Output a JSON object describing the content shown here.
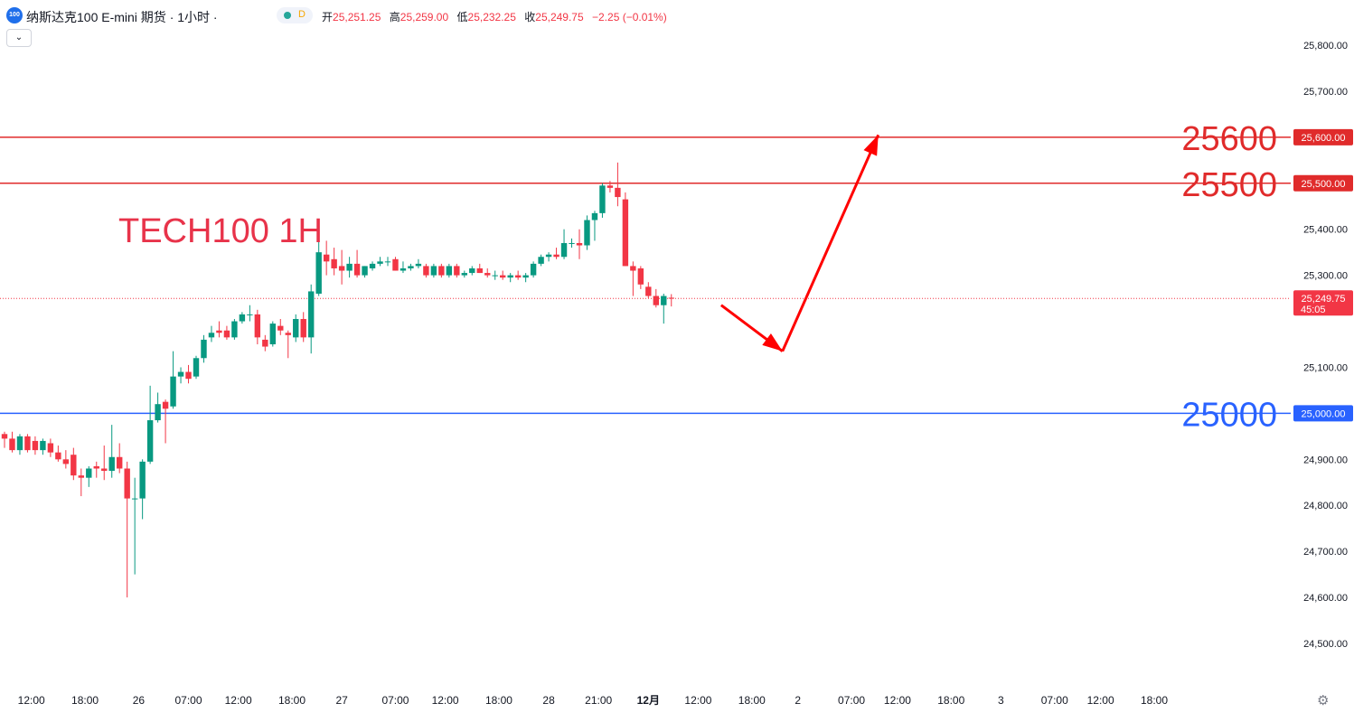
{
  "header": {
    "symbol_badge": "100",
    "title": "纳斯达克100 E-mini 期货 · 1小时 ·",
    "status_letter": "D",
    "open_label": "开",
    "open_value": "25,251.25",
    "high_label": "高",
    "high_value": "25,259.00",
    "low_label": "低",
    "low_value": "25,232.25",
    "close_label": "收",
    "close_value": "25,249.75",
    "change_value": "−2.25 (−0.01%)",
    "collapse_icon": "chevron-down-icon"
  },
  "colors": {
    "up": "#089981",
    "down": "#f23645",
    "resistance": "#e02b2b",
    "support": "#2962ff",
    "arrow": "#ff0000"
  },
  "chart_data": {
    "type": "candlestick",
    "annotation_title": "TECH100 1H",
    "ylim": [
      24420,
      25880
    ],
    "y_ticks": [
      {
        "value": 25800,
        "label": "25,800.00"
      },
      {
        "value": 25700,
        "label": "25,700.00"
      },
      {
        "value": 25400,
        "label": "25,400.00"
      },
      {
        "value": 25300,
        "label": "25,300.00"
      },
      {
        "value": 25100,
        "label": "25,100.00"
      },
      {
        "value": 24900,
        "label": "24,900.00"
      },
      {
        "value": 24800,
        "label": "24,800.00"
      },
      {
        "value": 24700,
        "label": "24,700.00"
      },
      {
        "value": 24600,
        "label": "24,600.00"
      },
      {
        "value": 24500,
        "label": "24,500.00"
      }
    ],
    "x_ticks": [
      {
        "index": 3.5,
        "label": "12:00",
        "bold": false
      },
      {
        "index": 10.5,
        "label": "18:00",
        "bold": false
      },
      {
        "index": 17.5,
        "label": "26",
        "bold": false
      },
      {
        "index": 24,
        "label": "07:00",
        "bold": false
      },
      {
        "index": 30.5,
        "label": "12:00",
        "bold": false
      },
      {
        "index": 37.5,
        "label": "18:00",
        "bold": false
      },
      {
        "index": 44,
        "label": "27",
        "bold": false
      },
      {
        "index": 51,
        "label": "07:00",
        "bold": false
      },
      {
        "index": 57.5,
        "label": "12:00",
        "bold": false
      },
      {
        "index": 64.5,
        "label": "18:00",
        "bold": false
      },
      {
        "index": 71,
        "label": "28",
        "bold": false
      },
      {
        "index": 77.5,
        "label": "21:00",
        "bold": false
      },
      {
        "index": 84,
        "label": "12月",
        "bold": true
      },
      {
        "index": 90.5,
        "label": "12:00",
        "bold": false
      },
      {
        "index": 97.5,
        "label": "18:00",
        "bold": false
      },
      {
        "index": 103.5,
        "label": "2",
        "bold": false
      },
      {
        "index": 110.5,
        "label": "07:00",
        "bold": false
      },
      {
        "index": 116.5,
        "label": "12:00",
        "bold": false
      },
      {
        "index": 123.5,
        "label": "18:00",
        "bold": false
      },
      {
        "index": 130,
        "label": "3",
        "bold": false
      },
      {
        "index": 137,
        "label": "07:00",
        "bold": false
      },
      {
        "index": 143,
        "label": "12:00",
        "bold": false
      },
      {
        "index": 150,
        "label": "18:00",
        "bold": false
      }
    ],
    "levels": [
      {
        "value": 25600,
        "label": "25600",
        "axis_label": "25,600.00",
        "color": "#e02b2b"
      },
      {
        "value": 25500,
        "label": "25500",
        "axis_label": "25,500.00",
        "color": "#e02b2b"
      },
      {
        "value": 25000,
        "label": "25000",
        "axis_label": "25,000.00",
        "color": "#2962ff"
      }
    ],
    "last_price": {
      "value": 25249.75,
      "label": "25,249.75",
      "countdown": "45:05"
    },
    "arrow_path": [
      {
        "index": 93.5,
        "value": 25235
      },
      {
        "index": 101.5,
        "value": 25135
      },
      {
        "index": 114,
        "value": 25605
      }
    ],
    "candles": [
      {
        "o": 24955,
        "h": 24960,
        "l": 24925,
        "c": 24945
      },
      {
        "o": 24945,
        "h": 24960,
        "l": 24915,
        "c": 24920
      },
      {
        "o": 24920,
        "h": 24955,
        "l": 24910,
        "c": 24950
      },
      {
        "o": 24950,
        "h": 24955,
        "l": 24915,
        "c": 24920
      },
      {
        "o": 24940,
        "h": 24950,
        "l": 24910,
        "c": 24920
      },
      {
        "o": 24920,
        "h": 24945,
        "l": 24910,
        "c": 24940
      },
      {
        "o": 24935,
        "h": 24945,
        "l": 24905,
        "c": 24915
      },
      {
        "o": 24915,
        "h": 24930,
        "l": 24895,
        "c": 24900
      },
      {
        "o": 24900,
        "h": 24920,
        "l": 24880,
        "c": 24890
      },
      {
        "o": 24910,
        "h": 24925,
        "l": 24855,
        "c": 24865
      },
      {
        "o": 24865,
        "h": 24880,
        "l": 24820,
        "c": 24860
      },
      {
        "o": 24860,
        "h": 24885,
        "l": 24840,
        "c": 24880
      },
      {
        "o": 24885,
        "h": 24895,
        "l": 24860,
        "c": 24880
      },
      {
        "o": 24880,
        "h": 24930,
        "l": 24855,
        "c": 24875
      },
      {
        "o": 24875,
        "h": 24975,
        "l": 24860,
        "c": 24905
      },
      {
        "o": 24905,
        "h": 24935,
        "l": 24870,
        "c": 24880
      },
      {
        "o": 24880,
        "h": 24895,
        "l": 24600,
        "c": 24815
      },
      {
        "o": 24815,
        "h": 24860,
        "l": 24650,
        "c": 24815
      },
      {
        "o": 24815,
        "h": 24900,
        "l": 24770,
        "c": 24895
      },
      {
        "o": 24895,
        "h": 25060,
        "l": 24890,
        "c": 24985
      },
      {
        "o": 24985,
        "h": 25045,
        "l": 24980,
        "c": 25020
      },
      {
        "o": 25025,
        "h": 25030,
        "l": 24935,
        "c": 25010
      },
      {
        "o": 25015,
        "h": 25135,
        "l": 25010,
        "c": 25080
      },
      {
        "o": 25080,
        "h": 25100,
        "l": 25065,
        "c": 25090
      },
      {
        "o": 25090,
        "h": 25105,
        "l": 25065,
        "c": 25075
      },
      {
        "o": 25080,
        "h": 25125,
        "l": 25075,
        "c": 25120
      },
      {
        "o": 25120,
        "h": 25170,
        "l": 25110,
        "c": 25160
      },
      {
        "o": 25165,
        "h": 25190,
        "l": 25155,
        "c": 25175
      },
      {
        "o": 25180,
        "h": 25200,
        "l": 25165,
        "c": 25175
      },
      {
        "o": 25180,
        "h": 25190,
        "l": 25160,
        "c": 25165
      },
      {
        "o": 25165,
        "h": 25205,
        "l": 25160,
        "c": 25200
      },
      {
        "o": 25200,
        "h": 25220,
        "l": 25195,
        "c": 25215
      },
      {
        "o": 25215,
        "h": 25235,
        "l": 25200,
        "c": 25215
      },
      {
        "o": 25215,
        "h": 25225,
        "l": 25150,
        "c": 25165
      },
      {
        "o": 25160,
        "h": 25170,
        "l": 25135,
        "c": 25145
      },
      {
        "o": 25150,
        "h": 25200,
        "l": 25145,
        "c": 25195
      },
      {
        "o": 25190,
        "h": 25205,
        "l": 25170,
        "c": 25180
      },
      {
        "o": 25175,
        "h": 25180,
        "l": 25120,
        "c": 25170
      },
      {
        "o": 25165,
        "h": 25215,
        "l": 25155,
        "c": 25205
      },
      {
        "o": 25205,
        "h": 25220,
        "l": 25155,
        "c": 25165
      },
      {
        "o": 25165,
        "h": 25280,
        "l": 25130,
        "c": 25265
      },
      {
        "o": 25260,
        "h": 25380,
        "l": 25255,
        "c": 25350
      },
      {
        "o": 25345,
        "h": 25375,
        "l": 25300,
        "c": 25330
      },
      {
        "o": 25335,
        "h": 25360,
        "l": 25300,
        "c": 25315
      },
      {
        "o": 25320,
        "h": 25355,
        "l": 25280,
        "c": 25310
      },
      {
        "o": 25310,
        "h": 25340,
        "l": 25295,
        "c": 25325
      },
      {
        "o": 25325,
        "h": 25355,
        "l": 25295,
        "c": 25300
      },
      {
        "o": 25300,
        "h": 25320,
        "l": 25295,
        "c": 25320
      },
      {
        "o": 25315,
        "h": 25330,
        "l": 25310,
        "c": 25325
      },
      {
        "o": 25325,
        "h": 25340,
        "l": 25320,
        "c": 25330
      },
      {
        "o": 25330,
        "h": 25340,
        "l": 25320,
        "c": 25330
      },
      {
        "o": 25335,
        "h": 25340,
        "l": 25310,
        "c": 25310
      },
      {
        "o": 25310,
        "h": 25330,
        "l": 25305,
        "c": 25315
      },
      {
        "o": 25315,
        "h": 25325,
        "l": 25310,
        "c": 25320
      },
      {
        "o": 25320,
        "h": 25335,
        "l": 25315,
        "c": 25325
      },
      {
        "o": 25320,
        "h": 25325,
        "l": 25295,
        "c": 25300
      },
      {
        "o": 25300,
        "h": 25325,
        "l": 25295,
        "c": 25320
      },
      {
        "o": 25320,
        "h": 25325,
        "l": 25295,
        "c": 25300
      },
      {
        "o": 25300,
        "h": 25325,
        "l": 25295,
        "c": 25320
      },
      {
        "o": 25320,
        "h": 25325,
        "l": 25295,
        "c": 25300
      },
      {
        "o": 25300,
        "h": 25310,
        "l": 25295,
        "c": 25305
      },
      {
        "o": 25305,
        "h": 25320,
        "l": 25300,
        "c": 25315
      },
      {
        "o": 25315,
        "h": 25325,
        "l": 25305,
        "c": 25305
      },
      {
        "o": 25305,
        "h": 25315,
        "l": 25295,
        "c": 25300
      },
      {
        "o": 25300,
        "h": 25310,
        "l": 25290,
        "c": 25300
      },
      {
        "o": 25300,
        "h": 25310,
        "l": 25290,
        "c": 25295
      },
      {
        "o": 25295,
        "h": 25305,
        "l": 25285,
        "c": 25300
      },
      {
        "o": 25300,
        "h": 25310,
        "l": 25290,
        "c": 25295
      },
      {
        "o": 25295,
        "h": 25305,
        "l": 25285,
        "c": 25300
      },
      {
        "o": 25300,
        "h": 25330,
        "l": 25295,
        "c": 25325
      },
      {
        "o": 25325,
        "h": 25345,
        "l": 25320,
        "c": 25340
      },
      {
        "o": 25340,
        "h": 25350,
        "l": 25330,
        "c": 25345
      },
      {
        "o": 25345,
        "h": 25360,
        "l": 25335,
        "c": 25340
      },
      {
        "o": 25340,
        "h": 25400,
        "l": 25335,
        "c": 25370
      },
      {
        "o": 25370,
        "h": 25380,
        "l": 25360,
        "c": 25370
      },
      {
        "o": 25370,
        "h": 25400,
        "l": 25335,
        "c": 25365
      },
      {
        "o": 25365,
        "h": 25430,
        "l": 25355,
        "c": 25420
      },
      {
        "o": 25420,
        "h": 25440,
        "l": 25375,
        "c": 25435
      },
      {
        "o": 25435,
        "h": 25500,
        "l": 25425,
        "c": 25495
      },
      {
        "o": 25495,
        "h": 25505,
        "l": 25480,
        "c": 25490
      },
      {
        "o": 25490,
        "h": 25545,
        "l": 25450,
        "c": 25470
      },
      {
        "o": 25465,
        "h": 25480,
        "l": 25320,
        "c": 25320
      },
      {
        "o": 25320,
        "h": 25330,
        "l": 25255,
        "c": 25310
      },
      {
        "o": 25315,
        "h": 25320,
        "l": 25270,
        "c": 25280
      },
      {
        "o": 25275,
        "h": 25285,
        "l": 25250,
        "c": 25255
      },
      {
        "o": 25255,
        "h": 25270,
        "l": 25230,
        "c": 25235
      },
      {
        "o": 25235,
        "h": 25260,
        "l": 25195,
        "c": 25255
      },
      {
        "o": 25251.25,
        "h": 25259,
        "l": 25232.25,
        "c": 25249.75
      }
    ]
  }
}
